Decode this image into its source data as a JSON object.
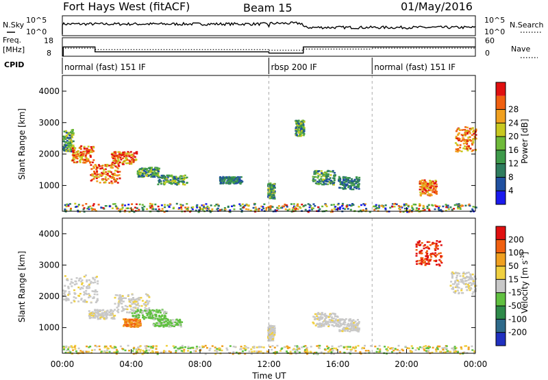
{
  "header": {
    "station": "Fort Hays West (fitACF)",
    "beam": "Beam 15",
    "date": "01/May/2016"
  },
  "strip": {
    "nsky_label": "N.Sky",
    "nsearch_label": "N.Search",
    "noise_ticks": [
      "10^5",
      "10^0"
    ],
    "freq_label_1": "Freq.",
    "freq_label_2": "[MHz]",
    "freq_ticks": [
      "18",
      "8"
    ],
    "nave_label": "Nave",
    "nave_ticks": [
      "60",
      "0"
    ],
    "cpid_label": "CPID",
    "cpid_segments": [
      {
        "start": 0.0,
        "end": 12.0,
        "label": "normal (fast) 151 IF"
      },
      {
        "start": 12.0,
        "end": 18.0,
        "label": "rbsp 200 IF"
      },
      {
        "start": 18.0,
        "end": 24.0,
        "label": "normal (fast) 151 IF"
      }
    ],
    "freq_steps": [
      {
        "start": 0.0,
        "end": 0.05,
        "value": 8
      },
      {
        "start": 0.05,
        "end": 1.9,
        "value": 15
      },
      {
        "start": 1.9,
        "end": 12.0,
        "value": 11
      },
      {
        "start": 12.0,
        "end": 14.0,
        "value": 10
      },
      {
        "start": 14.0,
        "end": 24.0,
        "value": 15
      }
    ],
    "nave_steps": [
      {
        "start": 0.0,
        "end": 1.9,
        "value": 25
      },
      {
        "start": 1.9,
        "end": 12.0,
        "value": 20
      },
      {
        "start": 12.0,
        "end": 14.0,
        "value": 18
      },
      {
        "start": 14.0,
        "end": 18.0,
        "value": 22
      },
      {
        "start": 18.0,
        "end": 24.0,
        "value": 25
      }
    ]
  },
  "chart_data": [
    {
      "type": "heatmap",
      "panel": "power",
      "xlabel": "",
      "ylabel": "Slant Range [km]",
      "xlim": [
        0,
        24
      ],
      "ylim": [
        180,
        4500
      ],
      "yticks": [
        "1000",
        "2000",
        "3000",
        "4000"
      ],
      "colorbar_label": "Power [dB]",
      "colorbar_ticks": [
        "4",
        "8",
        "12",
        "16",
        "20",
        "24",
        "28"
      ],
      "colorbar_colors": [
        "#1a1aee",
        "#2050a0",
        "#2e7c5e",
        "#3e9a4a",
        "#6fba3a",
        "#c8c820",
        "#f0a020",
        "#f06010",
        "#e01010"
      ],
      "echo_regions": [
        {
          "t0": 0.0,
          "t1": 0.6,
          "r0": 2100,
          "r1": 2800,
          "level": "mid"
        },
        {
          "t0": 0.5,
          "t1": 1.8,
          "r0": 1750,
          "r1": 2300,
          "level": "high"
        },
        {
          "t0": 1.6,
          "t1": 3.3,
          "r0": 1100,
          "r1": 1700,
          "level": "high"
        },
        {
          "t0": 2.8,
          "t1": 4.3,
          "r0": 1700,
          "r1": 2100,
          "level": "high"
        },
        {
          "t0": 4.3,
          "t1": 5.6,
          "r0": 1300,
          "r1": 1600,
          "level": "mid"
        },
        {
          "t0": 5.5,
          "t1": 7.2,
          "r0": 1050,
          "r1": 1350,
          "level": "mid"
        },
        {
          "t0": 9.1,
          "t1": 10.4,
          "r0": 1080,
          "r1": 1300,
          "level": "low"
        },
        {
          "t0": 11.9,
          "t1": 12.3,
          "r0": 600,
          "r1": 1100,
          "level": "mid"
        },
        {
          "t0": 13.5,
          "t1": 14.0,
          "r0": 2600,
          "r1": 3100,
          "level": "mid"
        },
        {
          "t0": 14.5,
          "t1": 15.8,
          "r0": 1050,
          "r1": 1500,
          "level": "mid"
        },
        {
          "t0": 16.0,
          "t1": 17.2,
          "r0": 900,
          "r1": 1300,
          "level": "low"
        },
        {
          "t0": 20.7,
          "t1": 21.7,
          "r0": 700,
          "r1": 1200,
          "level": "high"
        },
        {
          "t0": 22.8,
          "t1": 24.0,
          "r0": 2100,
          "r1": 2900,
          "level": "high"
        },
        {
          "t0": 0.0,
          "t1": 24.0,
          "r0": 180,
          "r1": 450,
          "level": "ground"
        }
      ]
    },
    {
      "type": "heatmap",
      "panel": "velocity",
      "xlabel": "Time UT",
      "ylabel": "Slant Range [km]",
      "xlim": [
        0,
        24
      ],
      "ylim": [
        180,
        4500
      ],
      "xticks": [
        "00:00",
        "04:00",
        "08:00",
        "12:00",
        "16:00",
        "20:00",
        "00:00"
      ],
      "yticks": [
        "1000",
        "2000",
        "3000",
        "4000"
      ],
      "colorbar_label": "Velocity [m s^-1]",
      "colorbar_ticks": [
        "200",
        "100",
        "50",
        "15",
        "-15",
        "-50",
        "-100",
        "-200"
      ],
      "colorbar_colors": [
        "#2030c0",
        "#2e6a8a",
        "#2e8a4a",
        "#60c040",
        "#c8c8c8",
        "#f0d040",
        "#f0a020",
        "#f06010",
        "#e01010"
      ],
      "echo_regions": [
        {
          "t0": 0.0,
          "t1": 2.0,
          "r0": 1800,
          "r1": 2700,
          "level": "grey"
        },
        {
          "t0": 1.5,
          "t1": 3.0,
          "r0": 1300,
          "r1": 1600,
          "level": "grey"
        },
        {
          "t0": 3.0,
          "t1": 5.0,
          "r0": 1500,
          "r1": 2100,
          "level": "grey"
        },
        {
          "t0": 4.0,
          "t1": 6.0,
          "r0": 1300,
          "r1": 1600,
          "level": "green"
        },
        {
          "t0": 3.5,
          "t1": 4.5,
          "r0": 1050,
          "r1": 1300,
          "level": "orange"
        },
        {
          "t0": 5.2,
          "t1": 6.9,
          "r0": 1050,
          "r1": 1300,
          "level": "green"
        },
        {
          "t0": 0.0,
          "t1": 24.0,
          "r0": 180,
          "r1": 450,
          "level": "ground"
        },
        {
          "t0": 11.9,
          "t1": 12.3,
          "r0": 600,
          "r1": 1100,
          "level": "grey"
        },
        {
          "t0": 14.5,
          "t1": 16.0,
          "r0": 1050,
          "r1": 1500,
          "level": "grey"
        },
        {
          "t0": 16.0,
          "t1": 17.2,
          "r0": 900,
          "r1": 1300,
          "level": "grey"
        },
        {
          "t0": 20.5,
          "t1": 22.0,
          "r0": 3000,
          "r1": 3800,
          "level": "red"
        },
        {
          "t0": 22.5,
          "t1": 24.0,
          "r0": 2100,
          "r1": 2800,
          "level": "grey"
        }
      ]
    }
  ]
}
